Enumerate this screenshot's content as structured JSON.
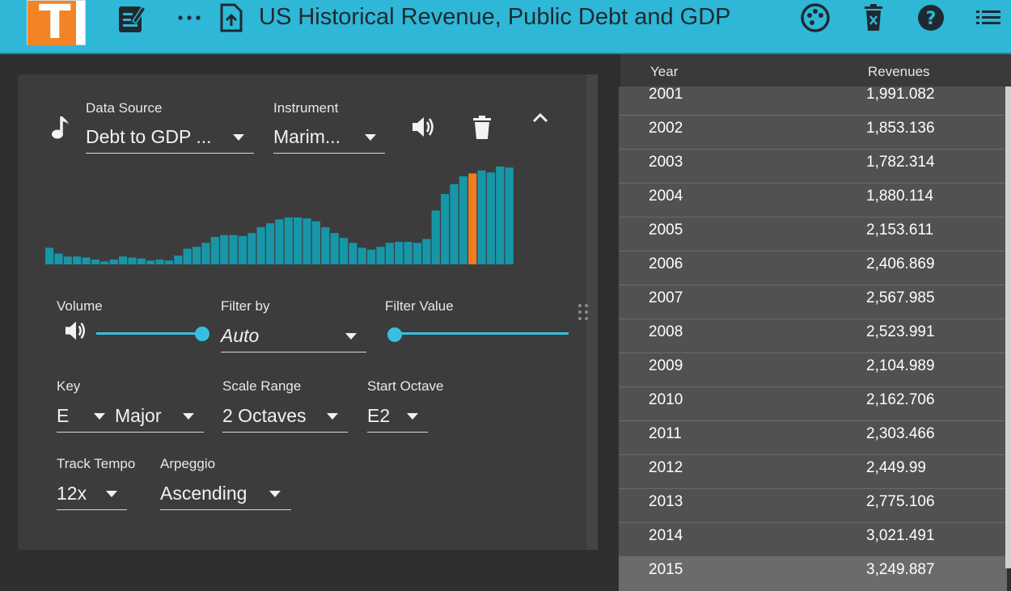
{
  "header": {
    "title": "US Historical Revenue, Public Debt and GDP",
    "logo_letter": "T"
  },
  "controls": {
    "data_source": {
      "label": "Data Source",
      "value": "Debt to GDP ..."
    },
    "instrument": {
      "label": "Instrument",
      "value": "Marim..."
    },
    "volume": {
      "label": "Volume",
      "level": 1.0
    },
    "filter_by": {
      "label": "Filter by",
      "value": "Auto"
    },
    "filter_value": {
      "label": "Filter Value",
      "level": 0.0
    },
    "key": {
      "label": "Key",
      "note": "E",
      "mode": "Major"
    },
    "scale_range": {
      "label": "Scale Range",
      "value": "2 Octaves"
    },
    "start_octave": {
      "label": "Start Octave",
      "value": "E2"
    },
    "track_tempo": {
      "label": "Track Tempo",
      "value": "12x"
    },
    "arpeggio": {
      "label": "Arpeggio",
      "value": "Ascending"
    }
  },
  "chart_data": {
    "type": "bar",
    "values": [
      17,
      11,
      8,
      8,
      7,
      5,
      3,
      5,
      8,
      7,
      6,
      4,
      5,
      4,
      9,
      16,
      18,
      22,
      28,
      30,
      30,
      29,
      32,
      38,
      42,
      46,
      48,
      48,
      47,
      44,
      38,
      32,
      27,
      22,
      17,
      15,
      18,
      22,
      23,
      23,
      22,
      26,
      55,
      72,
      82,
      90,
      93,
      96,
      94,
      100,
      99
    ],
    "highlight_index": 46,
    "colors": {
      "bar": "#1796a8",
      "highlight": "#f07c21"
    }
  },
  "table": {
    "columns": [
      "Year",
      "Revenues"
    ],
    "rows": [
      [
        "2001",
        "1,991.082"
      ],
      [
        "2002",
        "1,853.136"
      ],
      [
        "2003",
        "1,782.314"
      ],
      [
        "2004",
        "1,880.114"
      ],
      [
        "2005",
        "2,153.611"
      ],
      [
        "2006",
        "2,406.869"
      ],
      [
        "2007",
        "2,567.985"
      ],
      [
        "2008",
        "2,523.991"
      ],
      [
        "2009",
        "2,104.989"
      ],
      [
        "2010",
        "2,162.706"
      ],
      [
        "2011",
        "2,303.466"
      ],
      [
        "2012",
        "2,449.99"
      ],
      [
        "2013",
        "2,775.106"
      ],
      [
        "2014",
        "3,021.491"
      ],
      [
        "2015",
        "3,249.887"
      ]
    ]
  },
  "icons": {
    "logo": "logo-icon",
    "edit": "edit-note-icon",
    "more": "more-horizontal-icon",
    "upload": "file-upload-icon",
    "palette": "palette-icon",
    "delete_all": "delete-x-icon",
    "help": "help-icon",
    "list": "list-icon",
    "music": "music-note-icon",
    "speaker": "volume-icon",
    "trash": "trash-icon",
    "collapse": "chevron-up-icon",
    "drag": "drag-handle-icon"
  },
  "colors": {
    "accent": "#2fb7d7",
    "slider": "#37bfe0",
    "orange": "#f28425"
  }
}
